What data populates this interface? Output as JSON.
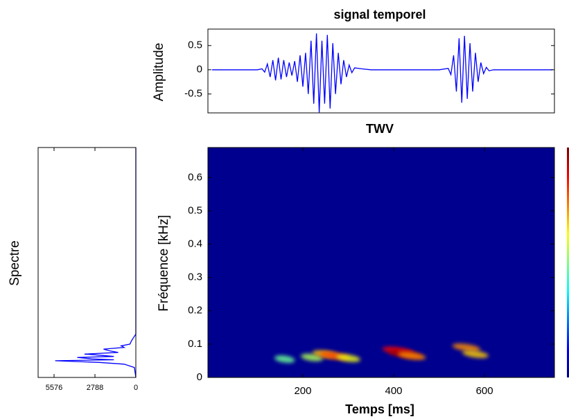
{
  "chart_data": [
    {
      "type": "line",
      "title": "signal temporel",
      "y_label": "Amplitude",
      "x": [
        0,
        100,
        110,
        116,
        122,
        128,
        134,
        140,
        146,
        152,
        158,
        164,
        170,
        176,
        182,
        188,
        194,
        200,
        206,
        212,
        218,
        224,
        230,
        236,
        242,
        248,
        254,
        260,
        266,
        272,
        278,
        284,
        290,
        296,
        302,
        308,
        314,
        330,
        350,
        500,
        520,
        526,
        532,
        538,
        544,
        550,
        556,
        562,
        568,
        574,
        580,
        586,
        592,
        598,
        604,
        610,
        620,
        750
      ],
      "values": [
        0,
        0,
        0.02,
        -0.05,
        0.12,
        -0.15,
        0.2,
        -0.22,
        0.25,
        -0.2,
        0.2,
        -0.15,
        0.15,
        -0.12,
        0.18,
        -0.25,
        0.3,
        -0.35,
        0.35,
        -0.5,
        0.6,
        -0.7,
        0.75,
        -0.88,
        0.6,
        -0.7,
        0.72,
        -0.8,
        0.55,
        -0.5,
        0.35,
        -0.3,
        0.2,
        -0.15,
        0.1,
        -0.06,
        0.04,
        0.02,
        0,
        0,
        0.03,
        -0.1,
        0.3,
        -0.45,
        0.65,
        -0.68,
        0.7,
        -0.6,
        0.55,
        -0.45,
        0.35,
        -0.25,
        0.15,
        -0.08,
        0.05,
        -0.02,
        0,
        0
      ],
      "color": "#0000ff",
      "xlim": [
        -9,
        754
      ],
      "ylim": [
        -0.89,
        0.84
      ],
      "yticks": [
        -0.5,
        0,
        0.5
      ]
    },
    {
      "type": "heatmap",
      "title": "TWV",
      "x_label": "Temps [ms]",
      "y_label": "Fréquence [kHz]",
      "x": [
        160,
        220,
        250,
        270,
        300,
        410,
        425,
        440,
        560,
        580
      ],
      "y": [
        0.055,
        0.06,
        0.07,
        0.065,
        0.058,
        0.08,
        0.07,
        0.065,
        0.09,
        0.07
      ],
      "z": [
        0.2,
        0.3,
        0.5,
        0.7,
        0.4,
        0.8,
        0.95,
        0.6,
        0.6,
        0.5
      ],
      "colormap": "jet",
      "background": "#00008f",
      "xlim": [
        -9,
        754
      ],
      "ylim": [
        0,
        0.69
      ],
      "xticks": [
        200,
        400,
        600
      ],
      "yticks": [
        0,
        0.1,
        0.2,
        0.3,
        0.4,
        0.5,
        0.6
      ]
    },
    {
      "type": "line",
      "orientation": "horizontal",
      "y_label": "Spectre",
      "x": [
        0,
        0.03,
        0.04,
        0.045,
        0.05,
        0.053,
        0.056,
        0.06,
        0.063,
        0.067,
        0.07,
        0.075,
        0.08,
        0.085,
        0.09,
        0.095,
        0.1,
        0.11,
        0.12,
        0.13,
        0.69
      ],
      "values": [
        0,
        100,
        800,
        2500,
        5500,
        1500,
        3000,
        4000,
        1500,
        2500,
        3500,
        1200,
        1800,
        2200,
        800,
        1000,
        400,
        300,
        150,
        0,
        0
      ],
      "color": "#0000ff",
      "xlim": [
        6663,
        0
      ],
      "ylim": [
        0,
        0.69
      ],
      "xticks": [
        5576,
        2788,
        0
      ]
    }
  ]
}
